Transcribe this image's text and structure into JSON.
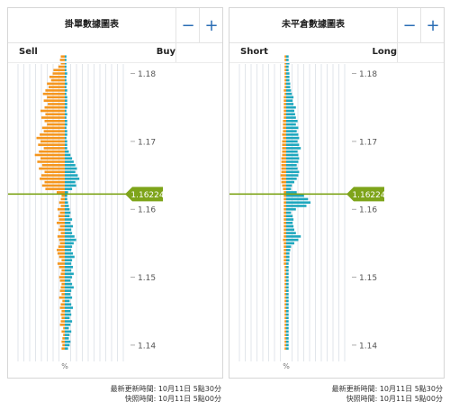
{
  "order_book": {
    "title": "掛單數據圖表",
    "minus_label": "−",
    "plus_label": "+",
    "left_label": "Sell",
    "right_label": "Buy",
    "axis_unit": "%",
    "update_time": "最新更新時間: 10月11日 5點30分",
    "snapshot_time": "快照時間: 10月11日 5點00分"
  },
  "position_book": {
    "title": "未平倉數據圖表",
    "minus_label": "−",
    "plus_label": "+",
    "left_label": "Short",
    "right_label": "Long",
    "axis_unit": "%",
    "update_time": "最新更新時間: 10月11日 5點30分",
    "snapshot_time": "快照時間: 10月11日 5點00分"
  },
  "colors": {
    "orange": "#f5961e",
    "teal": "#1ea7be",
    "price_line": "#7ea41a",
    "grid": "#cfd6de",
    "label": "#555555"
  },
  "chart_data": [
    {
      "type": "bar",
      "name": "order_book",
      "price_ticks": [
        "1.18",
        "1.17",
        "1.16",
        "1.15",
        "1.14"
      ],
      "y_range": [
        1.1376,
        1.1814
      ],
      "current_price": "1.16224",
      "bucket_size": 0.0005,
      "orange": [
        [
          1.1395,
          0.4
        ],
        [
          1.14,
          0.3
        ],
        [
          1.1405,
          0.4
        ],
        [
          1.141,
          0.3
        ],
        [
          1.1415,
          0.2
        ],
        [
          1.142,
          0.4
        ],
        [
          1.1425,
          0.2
        ],
        [
          1.143,
          0.6
        ],
        [
          1.1435,
          0.5
        ],
        [
          1.144,
          0.4
        ],
        [
          1.1445,
          0.5
        ],
        [
          1.145,
          0.4
        ],
        [
          1.1455,
          0.6
        ],
        [
          1.146,
          0.5
        ],
        [
          1.1465,
          0.3
        ],
        [
          1.147,
          0.7
        ],
        [
          1.1475,
          0.4
        ],
        [
          1.148,
          0.6
        ],
        [
          1.1485,
          0.5
        ],
        [
          1.149,
          0.4
        ],
        [
          1.1495,
          0.6
        ],
        [
          1.15,
          0.7
        ],
        [
          1.1505,
          0.5
        ],
        [
          1.151,
          0.4
        ],
        [
          1.1515,
          0.7
        ],
        [
          1.152,
          0.9
        ],
        [
          1.1525,
          0.4
        ],
        [
          1.153,
          0.7
        ],
        [
          1.1535,
          0.9
        ],
        [
          1.154,
          1.0
        ],
        [
          1.1545,
          0.8
        ],
        [
          1.155,
          0.6
        ],
        [
          1.1555,
          0.7
        ],
        [
          1.156,
          0.9
        ],
        [
          1.1565,
          0.5
        ],
        [
          1.157,
          0.8
        ],
        [
          1.1575,
          0.6
        ],
        [
          1.158,
          1.0
        ],
        [
          1.1585,
          0.7
        ],
        [
          1.159,
          0.8
        ],
        [
          1.1595,
          0.6
        ],
        [
          1.16,
          0.9
        ],
        [
          1.1605,
          0.5
        ],
        [
          1.161,
          0.7
        ],
        [
          1.1615,
          0.5
        ],
        [
          1.162,
          0.4
        ],
        [
          1.1625,
          1.0
        ],
        [
          1.163,
          2.4
        ],
        [
          1.1635,
          2.8
        ],
        [
          1.164,
          2.5
        ],
        [
          1.1645,
          3.1
        ],
        [
          1.165,
          2.9
        ],
        [
          1.1655,
          2.5
        ],
        [
          1.166,
          3.2
        ],
        [
          1.1665,
          2.8
        ],
        [
          1.167,
          3.4
        ],
        [
          1.1675,
          3.0
        ],
        [
          1.168,
          3.7
        ],
        [
          1.1685,
          3.2
        ],
        [
          1.169,
          2.6
        ],
        [
          1.1695,
          3.3
        ],
        [
          1.17,
          3.0
        ],
        [
          1.1705,
          3.5
        ],
        [
          1.171,
          3.1
        ],
        [
          1.1715,
          2.6
        ],
        [
          1.172,
          2.8
        ],
        [
          1.1725,
          2.2
        ],
        [
          1.173,
          2.5
        ],
        [
          1.1735,
          2.9
        ],
        [
          1.174,
          2.4
        ],
        [
          1.1745,
          3.0
        ],
        [
          1.175,
          2.5
        ],
        [
          1.1755,
          2.1
        ],
        [
          1.176,
          2.6
        ],
        [
          1.1765,
          2.2
        ],
        [
          1.177,
          2.7
        ],
        [
          1.1775,
          2.4
        ],
        [
          1.178,
          2.0
        ],
        [
          1.1785,
          2.2
        ],
        [
          1.179,
          1.7
        ],
        [
          1.1795,
          1.9
        ],
        [
          1.18,
          1.5
        ],
        [
          1.1805,
          1.4
        ],
        [
          1.181,
          0.8
        ],
        [
          1.1815,
          0.5
        ],
        [
          1.182,
          0.6
        ],
        [
          1.1825,
          0.5
        ]
      ],
      "teal": [
        [
          1.1395,
          0.4
        ],
        [
          1.14,
          0.6
        ],
        [
          1.1405,
          0.7
        ],
        [
          1.141,
          0.5
        ],
        [
          1.1415,
          0.6
        ],
        [
          1.142,
          0.8
        ],
        [
          1.1425,
          0.5
        ],
        [
          1.143,
          0.7
        ],
        [
          1.1435,
          0.9
        ],
        [
          1.144,
          0.6
        ],
        [
          1.1445,
          0.8
        ],
        [
          1.145,
          0.7
        ],
        [
          1.1455,
          1.0
        ],
        [
          1.146,
          0.8
        ],
        [
          1.1465,
          0.6
        ],
        [
          1.147,
          0.9
        ],
        [
          1.1475,
          0.7
        ],
        [
          1.148,
          0.8
        ],
        [
          1.1485,
          1.1
        ],
        [
          1.149,
          0.9
        ],
        [
          1.1495,
          0.7
        ],
        [
          1.15,
          0.9
        ],
        [
          1.1505,
          1.1
        ],
        [
          1.151,
          0.8
        ],
        [
          1.1515,
          1.0
        ],
        [
          1.152,
          0.8
        ],
        [
          1.1525,
          0.9
        ],
        [
          1.153,
          1.2
        ],
        [
          1.1535,
          1.0
        ],
        [
          1.154,
          0.8
        ],
        [
          1.1545,
          0.9
        ],
        [
          1.155,
          1.1
        ],
        [
          1.1555,
          1.4
        ],
        [
          1.156,
          1.2
        ],
        [
          1.1565,
          0.9
        ],
        [
          1.157,
          0.8
        ],
        [
          1.1575,
          1.0
        ],
        [
          1.158,
          0.7
        ],
        [
          1.1585,
          0.9
        ],
        [
          1.159,
          0.6
        ],
        [
          1.1595,
          0.7
        ],
        [
          1.16,
          0.6
        ],
        [
          1.1605,
          0.5
        ],
        [
          1.161,
          0.4
        ],
        [
          1.1615,
          0.3
        ],
        [
          1.162,
          0.3
        ],
        [
          1.1625,
          0.4
        ],
        [
          1.163,
          0.9
        ],
        [
          1.1635,
          1.4
        ],
        [
          1.164,
          1.3
        ],
        [
          1.1645,
          1.8
        ],
        [
          1.165,
          1.6
        ],
        [
          1.1655,
          1.3
        ],
        [
          1.166,
          1.5
        ],
        [
          1.1665,
          1.3
        ],
        [
          1.167,
          1.1
        ],
        [
          1.1675,
          0.9
        ],
        [
          1.168,
          0.7
        ],
        [
          1.1685,
          0.5
        ],
        [
          1.169,
          0.3
        ],
        [
          1.1695,
          0.3
        ],
        [
          1.17,
          0.3
        ],
        [
          1.1705,
          0.2
        ],
        [
          1.171,
          0.3
        ],
        [
          1.1715,
          0.3
        ],
        [
          1.172,
          0.2
        ],
        [
          1.1725,
          0.3
        ],
        [
          1.173,
          0.3
        ],
        [
          1.1735,
          0.2
        ],
        [
          1.174,
          0.3
        ],
        [
          1.1745,
          0.2
        ],
        [
          1.175,
          0.3
        ],
        [
          1.1755,
          0.3
        ],
        [
          1.176,
          0.3
        ],
        [
          1.1765,
          0.3
        ],
        [
          1.177,
          0.2
        ],
        [
          1.1775,
          0.3
        ],
        [
          1.178,
          0.2
        ],
        [
          1.1785,
          0.3
        ],
        [
          1.179,
          0.2
        ],
        [
          1.1795,
          0.2
        ],
        [
          1.18,
          0.3
        ],
        [
          1.1805,
          0.2
        ],
        [
          1.181,
          0.2
        ],
        [
          1.1815,
          0.2
        ],
        [
          1.182,
          0.2
        ],
        [
          1.1825,
          0.2
        ]
      ]
    },
    {
      "type": "bar",
      "name": "position_book",
      "price_ticks": [
        "1.18",
        "1.17",
        "1.16",
        "1.15",
        "1.14"
      ],
      "y_range": [
        1.1376,
        1.1814
      ],
      "current_price": "1.16224",
      "bucket_size": 0.0005,
      "orange": [
        [
          1.1395,
          0.2
        ],
        [
          1.14,
          0.2
        ],
        [
          1.1405,
          0.2
        ],
        [
          1.141,
          0.2
        ],
        [
          1.1415,
          0.2
        ],
        [
          1.142,
          0.2
        ],
        [
          1.1425,
          0.2
        ],
        [
          1.143,
          0.2
        ],
        [
          1.1435,
          0.2
        ],
        [
          1.144,
          0.2
        ],
        [
          1.1445,
          0.2
        ],
        [
          1.145,
          0.2
        ],
        [
          1.1455,
          0.2
        ],
        [
          1.146,
          0.2
        ],
        [
          1.1465,
          0.2
        ],
        [
          1.147,
          0.2
        ],
        [
          1.1475,
          0.2
        ],
        [
          1.148,
          0.2
        ],
        [
          1.1485,
          0.2
        ],
        [
          1.149,
          0.2
        ],
        [
          1.1495,
          0.2
        ],
        [
          1.15,
          0.2
        ],
        [
          1.1505,
          0.2
        ],
        [
          1.151,
          0.2
        ],
        [
          1.1515,
          0.2
        ],
        [
          1.152,
          0.3
        ],
        [
          1.1525,
          0.3
        ],
        [
          1.153,
          0.3
        ],
        [
          1.1535,
          0.3
        ],
        [
          1.154,
          0.3
        ],
        [
          1.1545,
          0.3
        ],
        [
          1.155,
          0.3
        ],
        [
          1.1555,
          0.4
        ],
        [
          1.156,
          0.3
        ],
        [
          1.1565,
          0.3
        ],
        [
          1.157,
          0.3
        ],
        [
          1.1575,
          0.3
        ],
        [
          1.158,
          0.3
        ],
        [
          1.1585,
          0.3
        ],
        [
          1.159,
          0.3
        ],
        [
          1.1595,
          0.3
        ],
        [
          1.16,
          0.3
        ],
        [
          1.1605,
          0.3
        ],
        [
          1.161,
          0.3
        ],
        [
          1.1615,
          0.3
        ],
        [
          1.162,
          0.3
        ],
        [
          1.1625,
          0.3
        ],
        [
          1.163,
          0.4
        ],
        [
          1.1635,
          0.5
        ],
        [
          1.164,
          0.6
        ],
        [
          1.1645,
          0.6
        ],
        [
          1.165,
          0.7
        ],
        [
          1.1655,
          0.6
        ],
        [
          1.166,
          0.6
        ],
        [
          1.1665,
          0.6
        ],
        [
          1.167,
          0.6
        ],
        [
          1.1675,
          0.6
        ],
        [
          1.168,
          0.5
        ],
        [
          1.1685,
          0.5
        ],
        [
          1.169,
          0.5
        ],
        [
          1.1695,
          0.5
        ],
        [
          1.17,
          0.5
        ],
        [
          1.1705,
          0.4
        ],
        [
          1.171,
          0.5
        ],
        [
          1.1715,
          0.4
        ],
        [
          1.172,
          0.4
        ],
        [
          1.1725,
          0.4
        ],
        [
          1.173,
          0.4
        ],
        [
          1.1735,
          0.3
        ],
        [
          1.174,
          0.3
        ],
        [
          1.1745,
          0.3
        ],
        [
          1.175,
          0.3
        ],
        [
          1.1755,
          0.3
        ],
        [
          1.176,
          0.3
        ],
        [
          1.1765,
          0.3
        ],
        [
          1.177,
          0.2
        ],
        [
          1.1775,
          0.3
        ],
        [
          1.178,
          0.2
        ],
        [
          1.1785,
          0.2
        ],
        [
          1.179,
          0.2
        ],
        [
          1.1795,
          0.2
        ],
        [
          1.18,
          0.2
        ],
        [
          1.1805,
          0.2
        ],
        [
          1.181,
          0.2
        ],
        [
          1.1815,
          0.2
        ],
        [
          1.182,
          0.2
        ],
        [
          1.1825,
          0.2
        ]
      ],
      "teal": [
        [
          1.1395,
          0.3
        ],
        [
          1.14,
          0.3
        ],
        [
          1.1405,
          0.3
        ],
        [
          1.141,
          0.3
        ],
        [
          1.1415,
          0.3
        ],
        [
          1.142,
          0.3
        ],
        [
          1.1425,
          0.3
        ],
        [
          1.143,
          0.3
        ],
        [
          1.1435,
          0.3
        ],
        [
          1.144,
          0.3
        ],
        [
          1.1445,
          0.3
        ],
        [
          1.145,
          0.3
        ],
        [
          1.1455,
          0.3
        ],
        [
          1.146,
          0.3
        ],
        [
          1.1465,
          0.3
        ],
        [
          1.147,
          0.3
        ],
        [
          1.1475,
          0.3
        ],
        [
          1.148,
          0.3
        ],
        [
          1.1485,
          0.3
        ],
        [
          1.149,
          0.3
        ],
        [
          1.1495,
          0.3
        ],
        [
          1.15,
          0.3
        ],
        [
          1.1505,
          0.3
        ],
        [
          1.151,
          0.3
        ],
        [
          1.1515,
          0.3
        ],
        [
          1.152,
          0.3
        ],
        [
          1.1525,
          0.4
        ],
        [
          1.153,
          0.4
        ],
        [
          1.1535,
          0.4
        ],
        [
          1.154,
          0.5
        ],
        [
          1.1545,
          0.6
        ],
        [
          1.155,
          1.0
        ],
        [
          1.1555,
          1.5
        ],
        [
          1.156,
          1.8
        ],
        [
          1.1565,
          1.2
        ],
        [
          1.157,
          1.0
        ],
        [
          1.1575,
          0.9
        ],
        [
          1.158,
          0.8
        ],
        [
          1.1585,
          0.9
        ],
        [
          1.159,
          0.8
        ],
        [
          1.1595,
          0.6
        ],
        [
          1.16,
          1.2
        ],
        [
          1.1605,
          2.5
        ],
        [
          1.161,
          3.0
        ],
        [
          1.1615,
          2.7
        ],
        [
          1.162,
          2.2
        ],
        [
          1.1625,
          1.3
        ],
        [
          1.163,
          0.6
        ],
        [
          1.1635,
          0.7
        ],
        [
          1.164,
          1.0
        ],
        [
          1.1645,
          1.3
        ],
        [
          1.165,
          1.5
        ],
        [
          1.1655,
          1.6
        ],
        [
          1.166,
          1.4
        ],
        [
          1.1665,
          1.3
        ],
        [
          1.167,
          1.5
        ],
        [
          1.1675,
          1.6
        ],
        [
          1.168,
          1.5
        ],
        [
          1.1685,
          1.4
        ],
        [
          1.169,
          1.8
        ],
        [
          1.1695,
          1.6
        ],
        [
          1.17,
          1.4
        ],
        [
          1.1705,
          1.6
        ],
        [
          1.171,
          1.5
        ],
        [
          1.1715,
          1.3
        ],
        [
          1.172,
          1.5
        ],
        [
          1.1725,
          1.2
        ],
        [
          1.173,
          1.4
        ],
        [
          1.1735,
          1.2
        ],
        [
          1.174,
          1.1
        ],
        [
          1.1745,
          1.0
        ],
        [
          1.175,
          1.2
        ],
        [
          1.1755,
          0.9
        ],
        [
          1.176,
          0.8
        ],
        [
          1.1765,
          0.9
        ],
        [
          1.177,
          0.7
        ],
        [
          1.1775,
          0.6
        ],
        [
          1.178,
          0.5
        ],
        [
          1.1785,
          0.5
        ],
        [
          1.179,
          0.4
        ],
        [
          1.1795,
          0.4
        ],
        [
          1.18,
          0.4
        ],
        [
          1.1805,
          0.3
        ],
        [
          1.181,
          0.3
        ],
        [
          1.1815,
          0.4
        ],
        [
          1.182,
          0.3
        ],
        [
          1.1825,
          0.3
        ]
      ]
    }
  ]
}
